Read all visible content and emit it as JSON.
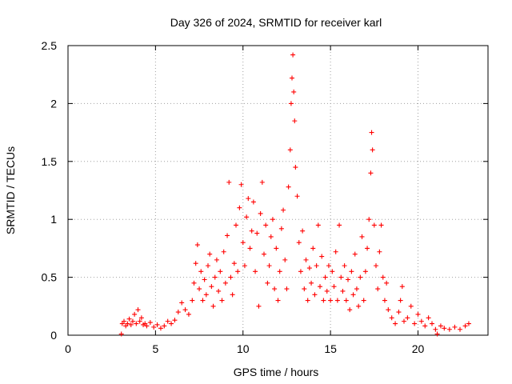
{
  "chart_data": {
    "type": "scatter",
    "title": "Day 326 of 2024, SRMTID for receiver karl",
    "xlabel": "GPS time / hours",
    "ylabel": "SRMTID / TECUs",
    "xlim": [
      0,
      24
    ],
    "ylim": [
      0,
      2.5
    ],
    "xticks": [
      0,
      5,
      10,
      15,
      20
    ],
    "xtick_labels": [
      "0",
      "5",
      "10",
      "15",
      "20"
    ],
    "yticks": [
      0,
      0.5,
      1,
      1.5,
      2,
      2.5
    ],
    "ytick_labels": [
      "0",
      "0.5",
      "1",
      "1.5",
      "2",
      "2.5"
    ],
    "grid": true,
    "marker": "+",
    "color": "#ff0000",
    "series": [
      {
        "name": "SRMTID",
        "points": [
          [
            3.05,
            0.01
          ],
          [
            3.1,
            0.1
          ],
          [
            3.2,
            0.12
          ],
          [
            3.3,
            0.08
          ],
          [
            3.4,
            0.1
          ],
          [
            3.5,
            0.14
          ],
          [
            3.6,
            0.09
          ],
          [
            3.7,
            0.12
          ],
          [
            3.8,
            0.18
          ],
          [
            3.9,
            0.1
          ],
          [
            4.0,
            0.22
          ],
          [
            4.1,
            0.12
          ],
          [
            4.2,
            0.15
          ],
          [
            4.3,
            0.09
          ],
          [
            4.4,
            0.1
          ],
          [
            4.5,
            0.08
          ],
          [
            4.7,
            0.11
          ],
          [
            4.9,
            0.07
          ],
          [
            5.1,
            0.09
          ],
          [
            5.3,
            0.06
          ],
          [
            5.5,
            0.08
          ],
          [
            5.7,
            0.12
          ],
          [
            5.9,
            0.1
          ],
          [
            6.1,
            0.13
          ],
          [
            6.3,
            0.2
          ],
          [
            6.5,
            0.28
          ],
          [
            6.7,
            0.22
          ],
          [
            6.9,
            0.18
          ],
          [
            7.1,
            0.3
          ],
          [
            7.2,
            0.45
          ],
          [
            7.3,
            0.62
          ],
          [
            7.4,
            0.78
          ],
          [
            7.5,
            0.4
          ],
          [
            7.6,
            0.55
          ],
          [
            7.7,
            0.3
          ],
          [
            7.8,
            0.48
          ],
          [
            7.9,
            0.35
          ],
          [
            8.0,
            0.6
          ],
          [
            8.1,
            0.7
          ],
          [
            8.2,
            0.42
          ],
          [
            8.3,
            0.25
          ],
          [
            8.4,
            0.5
          ],
          [
            8.5,
            0.65
          ],
          [
            8.6,
            0.38
          ],
          [
            8.7,
            0.55
          ],
          [
            8.8,
            0.3
          ],
          [
            8.9,
            0.72
          ],
          [
            9.0,
            0.45
          ],
          [
            9.1,
            0.86
          ],
          [
            9.2,
            1.32
          ],
          [
            9.3,
            0.5
          ],
          [
            9.4,
            0.35
          ],
          [
            9.5,
            0.62
          ],
          [
            9.6,
            0.95
          ],
          [
            9.7,
            0.55
          ],
          [
            9.8,
            1.1
          ],
          [
            9.9,
            1.3
          ],
          [
            10.0,
            0.8
          ],
          [
            10.1,
            0.6
          ],
          [
            10.2,
            1.02
          ],
          [
            10.3,
            1.18
          ],
          [
            10.4,
            0.75
          ],
          [
            10.5,
            0.9
          ],
          [
            10.6,
            1.15
          ],
          [
            10.7,
            0.55
          ],
          [
            10.8,
            0.88
          ],
          [
            10.9,
            0.25
          ],
          [
            11.0,
            1.05
          ],
          [
            11.1,
            1.32
          ],
          [
            11.2,
            0.7
          ],
          [
            11.3,
            0.95
          ],
          [
            11.4,
            0.45
          ],
          [
            11.5,
            0.6
          ],
          [
            11.6,
            0.85
          ],
          [
            11.7,
            1.0
          ],
          [
            11.8,
            0.4
          ],
          [
            11.9,
            0.75
          ],
          [
            12.0,
            0.3
          ],
          [
            12.1,
            0.55
          ],
          [
            12.2,
            0.92
          ],
          [
            12.3,
            1.08
          ],
          [
            12.4,
            0.65
          ],
          [
            12.5,
            0.4
          ],
          [
            12.6,
            1.28
          ],
          [
            12.7,
            1.6
          ],
          [
            12.75,
            2.0
          ],
          [
            12.8,
            2.22
          ],
          [
            12.85,
            2.42
          ],
          [
            12.9,
            2.1
          ],
          [
            12.95,
            1.85
          ],
          [
            13.0,
            1.45
          ],
          [
            13.1,
            1.2
          ],
          [
            13.2,
            0.8
          ],
          [
            13.3,
            0.55
          ],
          [
            13.4,
            0.9
          ],
          [
            13.5,
            0.4
          ],
          [
            13.6,
            0.65
          ],
          [
            13.7,
            0.3
          ],
          [
            13.8,
            0.58
          ],
          [
            13.9,
            0.45
          ],
          [
            14.0,
            0.75
          ],
          [
            14.1,
            0.35
          ],
          [
            14.2,
            0.6
          ],
          [
            14.3,
            0.95
          ],
          [
            14.4,
            0.42
          ],
          [
            14.5,
            0.68
          ],
          [
            14.6,
            0.3
          ],
          [
            14.7,
            0.5
          ],
          [
            14.8,
            0.38
          ],
          [
            14.9,
            0.6
          ],
          [
            15.0,
            0.3
          ],
          [
            15.1,
            0.55
          ],
          [
            15.2,
            0.42
          ],
          [
            15.3,
            0.72
          ],
          [
            15.4,
            0.3
          ],
          [
            15.5,
            0.95
          ],
          [
            15.6,
            0.5
          ],
          [
            15.7,
            0.38
          ],
          [
            15.8,
            0.6
          ],
          [
            15.9,
            0.3
          ],
          [
            16.0,
            0.48
          ],
          [
            16.1,
            0.22
          ],
          [
            16.2,
            0.55
          ],
          [
            16.3,
            0.35
          ],
          [
            16.4,
            0.7
          ],
          [
            16.5,
            0.4
          ],
          [
            16.6,
            0.25
          ],
          [
            16.7,
            0.5
          ],
          [
            16.8,
            0.85
          ],
          [
            16.9,
            0.3
          ],
          [
            17.0,
            0.55
          ],
          [
            17.1,
            0.75
          ],
          [
            17.2,
            1.0
          ],
          [
            17.3,
            1.4
          ],
          [
            17.35,
            1.75
          ],
          [
            17.4,
            1.6
          ],
          [
            17.5,
            0.95
          ],
          [
            17.6,
            0.6
          ],
          [
            17.7,
            0.4
          ],
          [
            17.8,
            0.72
          ],
          [
            17.9,
            0.95
          ],
          [
            18.0,
            0.5
          ],
          [
            18.1,
            0.3
          ],
          [
            18.2,
            0.45
          ],
          [
            18.3,
            0.22
          ],
          [
            18.5,
            0.15
          ],
          [
            18.7,
            0.1
          ],
          [
            18.9,
            0.2
          ],
          [
            19.0,
            0.3
          ],
          [
            19.1,
            0.42
          ],
          [
            19.2,
            0.12
          ],
          [
            19.4,
            0.15
          ],
          [
            19.6,
            0.25
          ],
          [
            19.8,
            0.1
          ],
          [
            20.0,
            0.18
          ],
          [
            20.2,
            0.12
          ],
          [
            20.4,
            0.08
          ],
          [
            20.6,
            0.15
          ],
          [
            20.8,
            0.1
          ],
          [
            21.0,
            0.05
          ],
          [
            21.1,
            0.01
          ],
          [
            21.3,
            0.08
          ],
          [
            21.5,
            0.06
          ],
          [
            21.8,
            0.05
          ],
          [
            22.1,
            0.07
          ],
          [
            22.4,
            0.05
          ],
          [
            22.7,
            0.08
          ],
          [
            22.9,
            0.1
          ]
        ]
      }
    ]
  }
}
